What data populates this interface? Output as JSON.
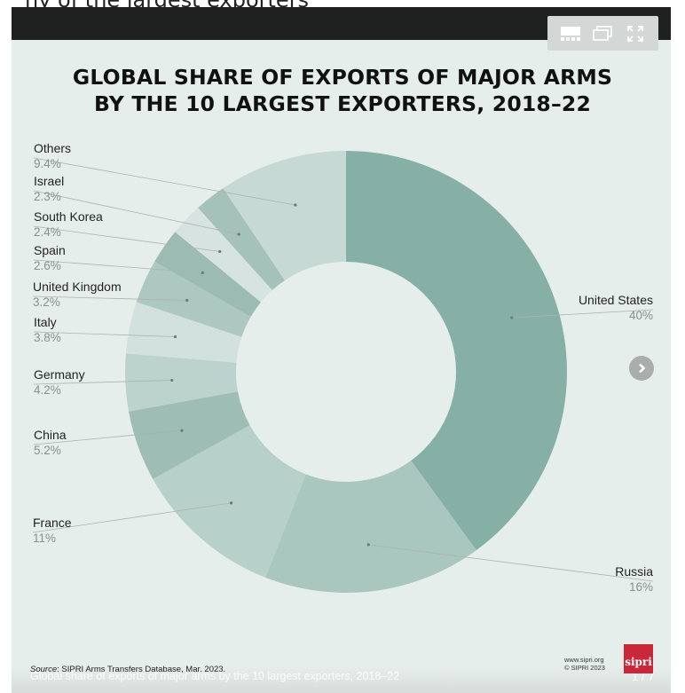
{
  "page": {
    "header_fragment": "ny of the largest exporters",
    "toolbar": [
      "grid-view-icon",
      "windowed-icon",
      "fullscreen-icon"
    ]
  },
  "chart_data": {
    "type": "pie",
    "variant": "donut",
    "title_lines": [
      "GLOBAL SHARE OF EXPORTS OF MAJOR ARMS",
      "BY THE 10 LARGEST EXPORTERS, 2018–22"
    ],
    "slices": [
      {
        "name": "United States",
        "value": 40,
        "label": "40%",
        "color": "#86b0a5"
      },
      {
        "name": "Russia",
        "value": 16,
        "label": "16%",
        "color": "#a9c6bf"
      },
      {
        "name": "France",
        "value": 11,
        "label": "11%",
        "color": "#b7d0ca"
      },
      {
        "name": "China",
        "value": 5.2,
        "label": "5.2%",
        "color": "#9ebdb4"
      },
      {
        "name": "Germany",
        "value": 4.2,
        "label": "4.2%",
        "color": "#bcd3cd"
      },
      {
        "name": "Italy",
        "value": 3.8,
        "label": "3.8%",
        "color": "#d2e1dd"
      },
      {
        "name": "United Kingdom",
        "value": 3.2,
        "label": "3.2%",
        "color": "#acc8c1"
      },
      {
        "name": "Spain",
        "value": 2.6,
        "label": "2.6%",
        "color": "#9cbbb3"
      },
      {
        "name": "South Korea",
        "value": 2.4,
        "label": "2.4%",
        "color": "#d6e3e0"
      },
      {
        "name": "Israel",
        "value": 2.3,
        "label": "2.3%",
        "color": "#a4c2ba"
      },
      {
        "name": "Others",
        "value": 9.4,
        "label": "9.4%",
        "color": "#c6d9d4"
      }
    ],
    "source_label": "Source",
    "source_text": ": SIPRI Arms Transfers Database, Mar. 2023."
  },
  "footer": {
    "caption": "Global share of exports of major arms by the 10 largest exporters, 2018–22",
    "counter": "1 / 7",
    "url": "www.sipri.org",
    "copyright": "© SIPRI 2023",
    "logo": "sipri"
  },
  "colors": {
    "background": "#e6eeeb",
    "topbar": "#1f2020",
    "leader": "#aab3b0"
  }
}
